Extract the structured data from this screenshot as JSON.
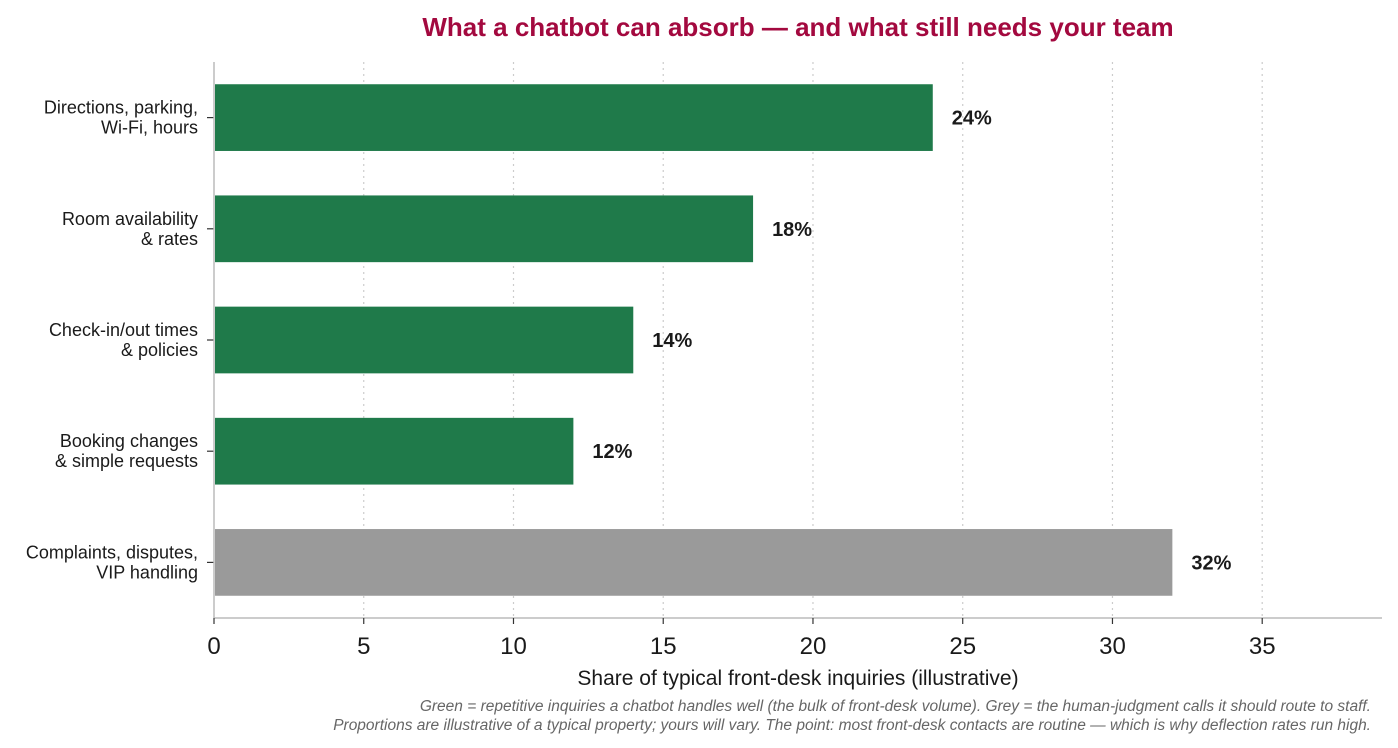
{
  "chart_data": {
    "type": "bar",
    "orientation": "horizontal",
    "title": "What a chatbot can absorb — and what still needs your team",
    "xlabel": "Share of typical front-desk inquiries (illustrative)",
    "ylabel": "",
    "xlim": [
      0,
      39
    ],
    "xticks": [
      0,
      5,
      10,
      15,
      20,
      25,
      30,
      35
    ],
    "grid": "x, dotted",
    "categories": [
      [
        "Directions, parking,",
        "Wi-Fi, hours"
      ],
      [
        "Room availability",
        "& rates"
      ],
      [
        "Check-in/out times",
        "& policies"
      ],
      [
        "Booking changes",
        "& simple requests"
      ],
      [
        "Complaints, disputes,",
        "VIP handling"
      ]
    ],
    "values": [
      24,
      18,
      14,
      12,
      32
    ],
    "data_labels": [
      "24%",
      "18%",
      "14%",
      "12%",
      "32%"
    ],
    "bar_colors": [
      "#1f7a4a",
      "#1f7a4a",
      "#1f7a4a",
      "#1f7a4a",
      "#9a9a9a"
    ]
  },
  "colors": {
    "title": "#a3093f",
    "chatbot": "#1f7a4a",
    "human": "#9a9a9a",
    "axis": "#bbbbbb",
    "grid": "#cccccc"
  },
  "footnote": [
    "Green = repetitive inquiries a chatbot handles well (the bulk of front-desk volume). Grey = the human-judgment calls it should route to staff.",
    "Proportions are illustrative of a typical property; yours will vary. The point: most front-desk contacts are routine — which is why deflection rates run high."
  ]
}
